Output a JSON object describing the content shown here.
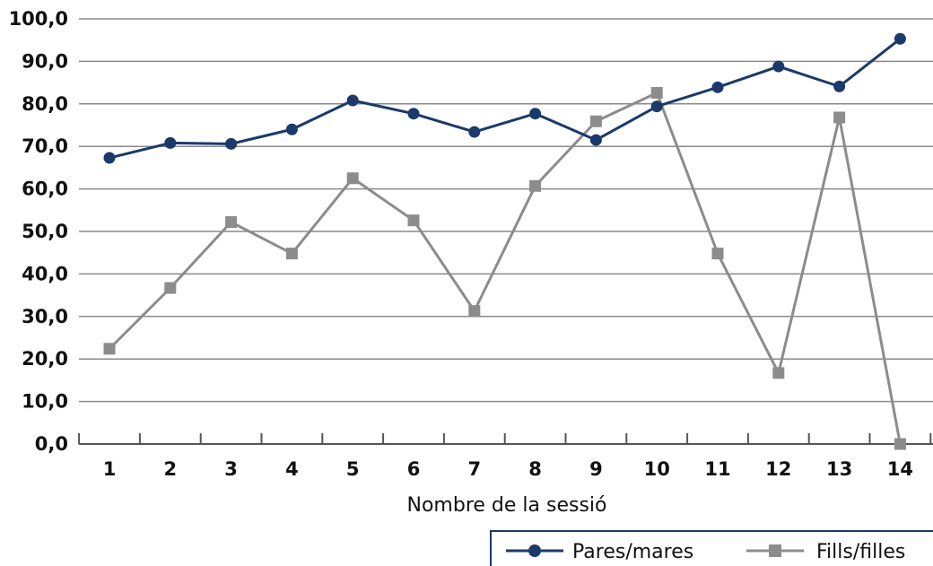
{
  "chart_data": {
    "type": "line",
    "xlabel": "Nombre de la sessió",
    "ylabel": "",
    "ylim": [
      0,
      100
    ],
    "yticks": [
      "0,0",
      "10,0",
      "20,0",
      "30,0",
      "40,0",
      "50,0",
      "60,0",
      "70,0",
      "80,0",
      "90,0",
      "100,0"
    ],
    "categories": [
      "1",
      "2",
      "3",
      "4",
      "5",
      "6",
      "7",
      "8",
      "9",
      "10",
      "11",
      "12",
      "13",
      "14"
    ],
    "grid": true,
    "legend": "bottom-right",
    "series": [
      {
        "name": "Pares/mares",
        "color": "#1b3a6b",
        "marker": "circle",
        "values": [
          67.3,
          70.8,
          70.6,
          74.0,
          80.8,
          77.7,
          73.4,
          77.7,
          71.5,
          79.4,
          83.9,
          88.8,
          84.1,
          95.3
        ]
      },
      {
        "name": "Fills/filles",
        "color": "#8c8c8c",
        "marker": "square",
        "values": [
          22.4,
          36.7,
          52.2,
          44.8,
          62.5,
          52.6,
          31.3,
          60.7,
          75.9,
          82.6,
          44.8,
          16.7,
          76.8,
          0.0
        ]
      }
    ]
  }
}
